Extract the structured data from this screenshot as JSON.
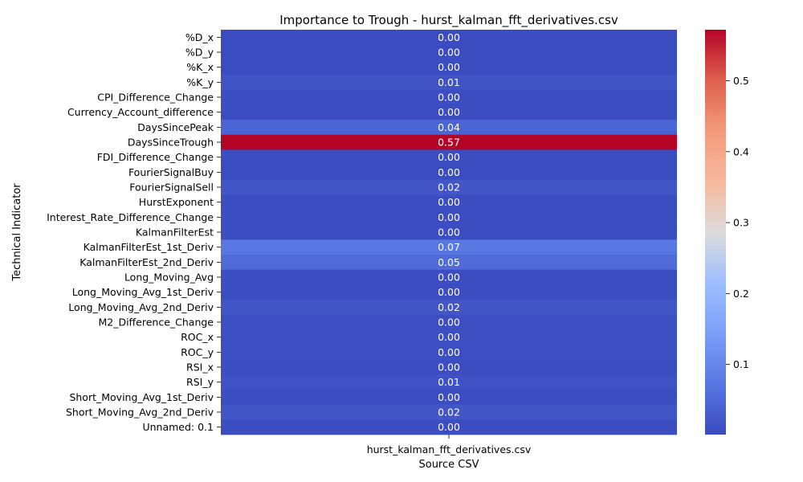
{
  "chart_data": {
    "type": "heatmap",
    "title": "Importance to Trough - hurst_kalman_fft_derivatives.csv",
    "xlabel": "Source CSV",
    "ylabel": "Technical Indicator",
    "colormap": "coolwarm",
    "x_categories": [
      "hurst_kalman_fft_derivatives.csv"
    ],
    "y_categories": [
      "%D_x",
      "%D_y",
      "%K_x",
      "%K_y",
      "CPI_Difference_Change",
      "Currency_Account_difference",
      "DaysSincePeak",
      "DaysSinceTrough",
      "FDI_Difference_Change",
      "FourierSignalBuy",
      "FourierSignalSell",
      "HurstExponent",
      "Interest_Rate_Difference_Change",
      "KalmanFilterEst",
      "KalmanFilterEst_1st_Deriv",
      "KalmanFilterEst_2nd_Deriv",
      "Long_Moving_Avg",
      "Long_Moving_Avg_1st_Deriv",
      "Long_Moving_Avg_2nd_Deriv",
      "M2_Difference_Change",
      "ROC_x",
      "ROC_y",
      "RSI_x",
      "RSI_y",
      "Short_Moving_Avg_1st_Deriv",
      "Short_Moving_Avg_2nd_Deriv",
      "Unnamed: 0.1"
    ],
    "values": [
      0.001,
      0.001,
      0.001,
      0.012,
      0.003,
      0.002,
      0.042,
      0.572,
      0.002,
      0.001,
      0.018,
      0.002,
      0.003,
      0.002,
      0.072,
      0.05,
      0.003,
      0.003,
      0.017,
      0.004,
      0.004,
      0.004,
      0.003,
      0.01,
      0.002,
      0.018,
      0.003
    ],
    "labels": [
      "0.00",
      "0.00",
      "0.00",
      "0.01",
      "0.00",
      "0.00",
      "0.04",
      "0.57",
      "0.00",
      "0.00",
      "0.02",
      "0.00",
      "0.00",
      "0.00",
      "0.07",
      "0.05",
      "0.00",
      "0.00",
      "0.02",
      "0.00",
      "0.00",
      "0.00",
      "0.00",
      "0.01",
      "0.00",
      "0.02",
      "0.00"
    ],
    "colorbar": {
      "vmin": 0.001,
      "vmax": 0.572,
      "ticks": [
        "0.1",
        "0.2",
        "0.3",
        "0.4",
        "0.5"
      ],
      "tick_values": [
        0.1,
        0.2,
        0.3,
        0.4,
        0.5
      ]
    }
  }
}
